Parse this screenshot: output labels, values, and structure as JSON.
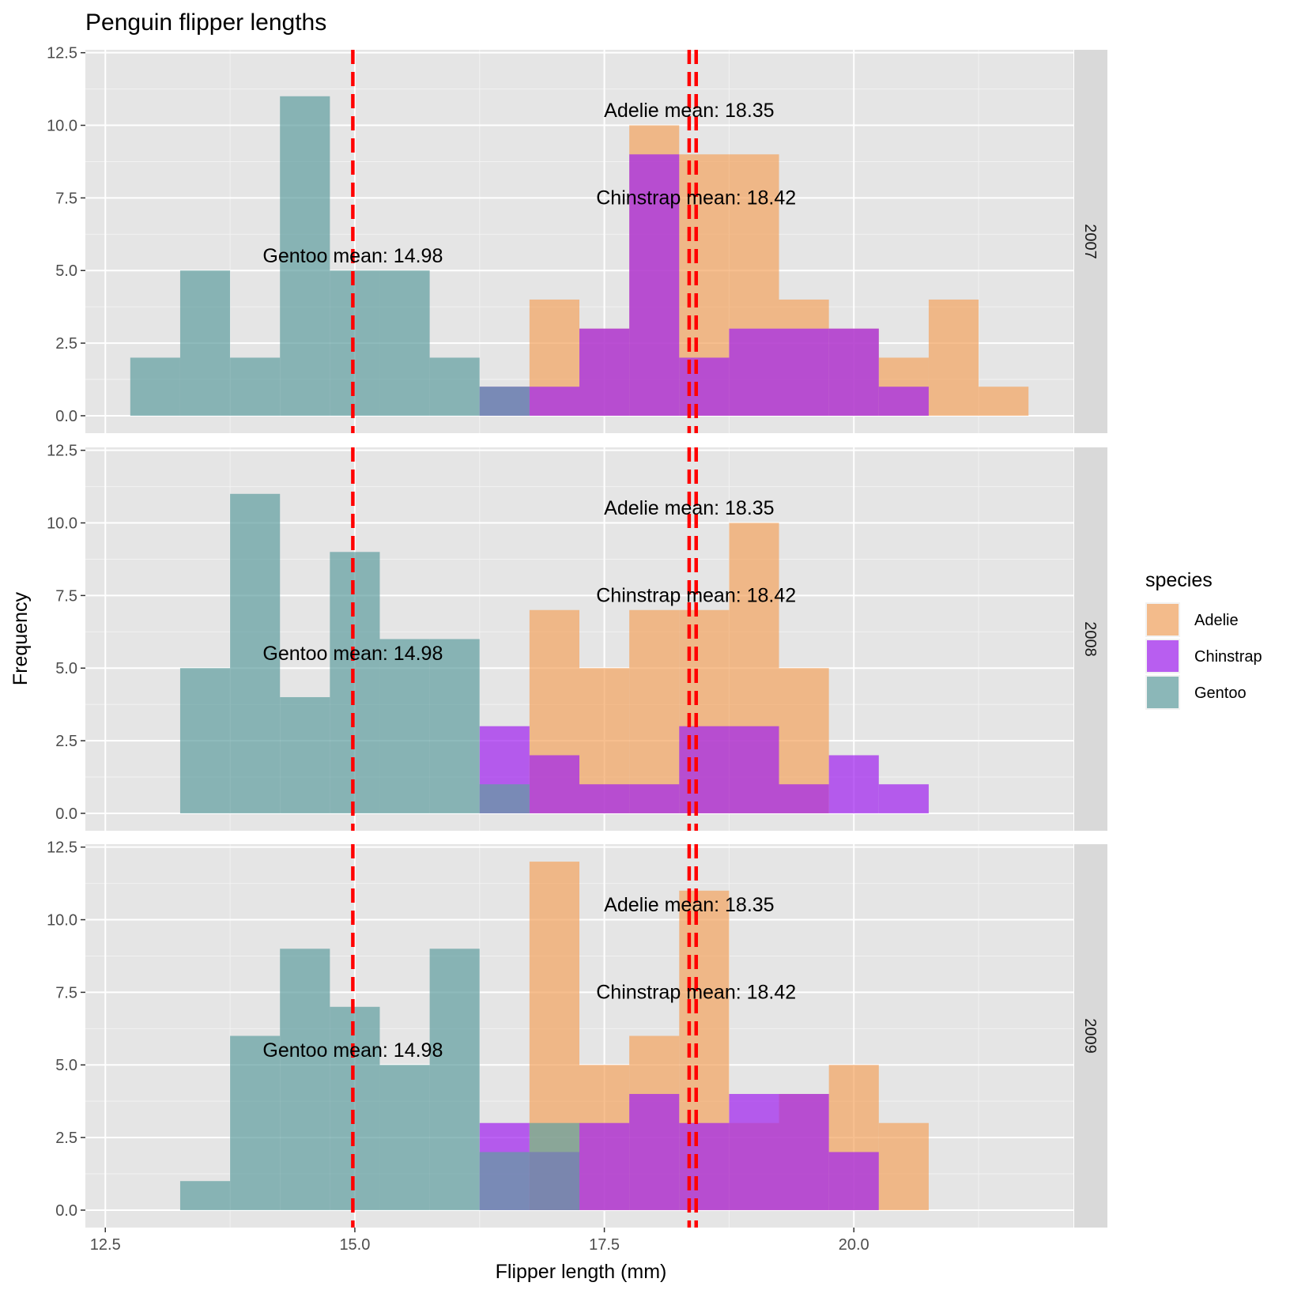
{
  "chart_data": {
    "type": "bar",
    "subtype": "faceted-overlapping-histogram",
    "title": "Penguin flipper lengths",
    "xlabel": "Flipper length (mm)",
    "ylabel": "Frequency",
    "xlim": [
      12.3,
      22.2
    ],
    "ylim": [
      -0.6,
      12.6
    ],
    "x_ticks": [
      "12.5",
      "15.0",
      "17.5",
      "20.0"
    ],
    "y_ticks": [
      "0.0",
      "2.5",
      "5.0",
      "7.5",
      "10.0",
      "12.5"
    ],
    "bin_width": 0.5,
    "bin_starts": [
      12.75,
      13.25,
      13.75,
      14.25,
      14.75,
      15.25,
      15.75,
      16.25,
      16.75,
      17.25,
      17.75,
      18.25,
      18.75,
      19.25,
      19.75,
      20.25,
      20.75,
      21.25
    ],
    "legend": {
      "title": "species",
      "position": "right",
      "entries": [
        {
          "label": "Adelie",
          "color": "#f4a460"
        },
        {
          "label": "Chinstrap",
          "color": "#a020f0"
        },
        {
          "label": "Gentoo",
          "color": "#5f9ea0"
        }
      ]
    },
    "bar_opacity": 0.7,
    "colors": {
      "Adelie": "#f4a460",
      "Chinstrap": "#a020f0",
      "Gentoo": "#5f9ea0",
      "mean_line": "#ff0000"
    },
    "grid": true,
    "panels": [
      {
        "strip": "2007",
        "series": [
          {
            "name": "Adelie",
            "values": [
              0,
              0,
              0,
              0,
              0,
              0,
              0,
              0,
              4,
              3,
              10,
              9,
              9,
              4,
              3,
              2,
              4,
              1
            ]
          },
          {
            "name": "Chinstrap",
            "values": [
              0,
              0,
              0,
              0,
              0,
              0,
              0,
              1,
              1,
              3,
              9,
              2,
              3,
              3,
              3,
              1,
              0,
              0
            ]
          },
          {
            "name": "Gentoo",
            "values": [
              2,
              5,
              2,
              11,
              5,
              5,
              2,
              1,
              0,
              0,
              0,
              0,
              0,
              0,
              0,
              0,
              0,
              0
            ]
          }
        ]
      },
      {
        "strip": "2008",
        "series": [
          {
            "name": "Adelie",
            "values": [
              0,
              0,
              0,
              0,
              0,
              0,
              0,
              0,
              7,
              5,
              7,
              7,
              10,
              5,
              0,
              0,
              0,
              0
            ]
          },
          {
            "name": "Chinstrap",
            "values": [
              0,
              0,
              0,
              0,
              0,
              0,
              0,
              3,
              2,
              1,
              1,
              3,
              3,
              1,
              2,
              1,
              0,
              0
            ]
          },
          {
            "name": "Gentoo",
            "values": [
              0,
              5,
              11,
              4,
              9,
              6,
              6,
              1,
              0,
              0,
              0,
              0,
              0,
              0,
              0,
              0,
              0,
              0
            ]
          }
        ]
      },
      {
        "strip": "2009",
        "series": [
          {
            "name": "Adelie",
            "values": [
              0,
              0,
              0,
              0,
              0,
              0,
              0,
              0,
              12,
              5,
              6,
              11,
              3,
              4,
              5,
              3,
              0,
              0
            ]
          },
          {
            "name": "Chinstrap",
            "values": [
              0,
              0,
              0,
              0,
              0,
              0,
              0,
              3,
              2,
              3,
              4,
              3,
              4,
              4,
              2,
              0,
              0,
              0
            ]
          },
          {
            "name": "Gentoo",
            "values": [
              0,
              1,
              6,
              9,
              7,
              5,
              9,
              2,
              3,
              0,
              0,
              0,
              0,
              0,
              0,
              0,
              0,
              0
            ]
          }
        ]
      }
    ],
    "mean_lines": [
      {
        "species": "Gentoo",
        "x": 14.98,
        "label": "Gentoo mean: 14.98"
      },
      {
        "species": "Adelie",
        "x": 18.35,
        "label": "Adelie mean: 18.35"
      },
      {
        "species": "Chinstrap",
        "x": 18.42,
        "label": "Chinstrap mean: 18.42"
      }
    ]
  }
}
